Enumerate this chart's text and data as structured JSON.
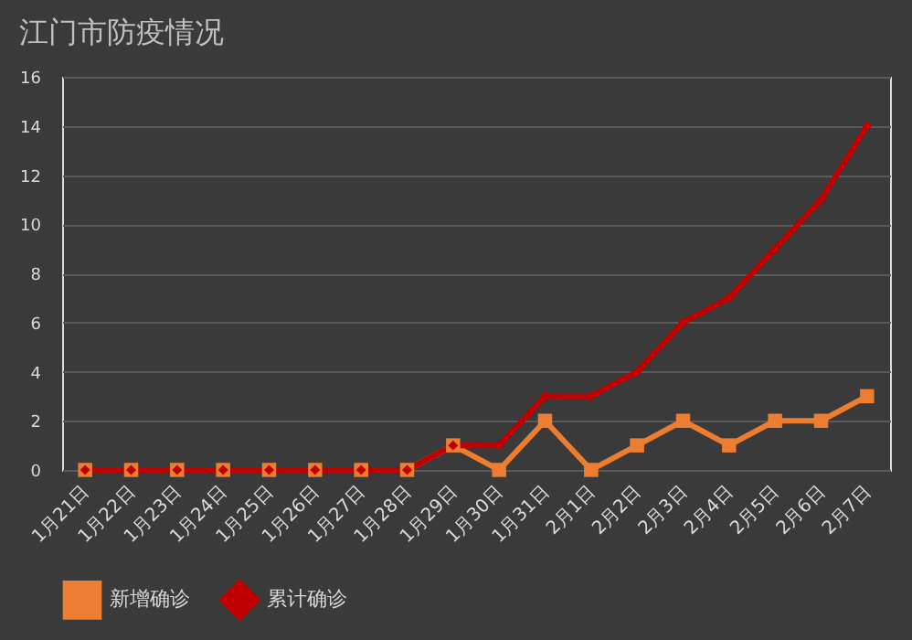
{
  "chart_data": {
    "type": "line",
    "title": "江门市防疫情况",
    "categories": [
      "1月21日",
      "1月22日",
      "1月23日",
      "1月24日",
      "1月25日",
      "1月26日",
      "1月27日",
      "1月28日",
      "1月29日",
      "1月30日",
      "1月31日",
      "2月1日",
      "2月2日",
      "2月3日",
      "2月4日",
      "2月5日",
      "2月6日",
      "2月7日"
    ],
    "series": [
      {
        "name": "新增确诊",
        "color": "#ed7d31",
        "marker": "square",
        "values": [
          0,
          0,
          0,
          0,
          0,
          0,
          0,
          0,
          1,
          0,
          2,
          0,
          1,
          2,
          1,
          2,
          2,
          3
        ]
      },
      {
        "name": "累计确诊",
        "color": "#c00000",
        "marker": "diamond",
        "values": [
          0,
          0,
          0,
          0,
          0,
          0,
          0,
          0,
          1,
          1,
          3,
          3,
          4,
          6,
          7,
          9,
          11,
          14
        ]
      }
    ],
    "ylim": [
      0,
      16
    ],
    "yticks": [
      0,
      2,
      4,
      6,
      8,
      10,
      12,
      14,
      16
    ],
    "grid": "y",
    "legend": "bottom",
    "line_style": "solid"
  }
}
